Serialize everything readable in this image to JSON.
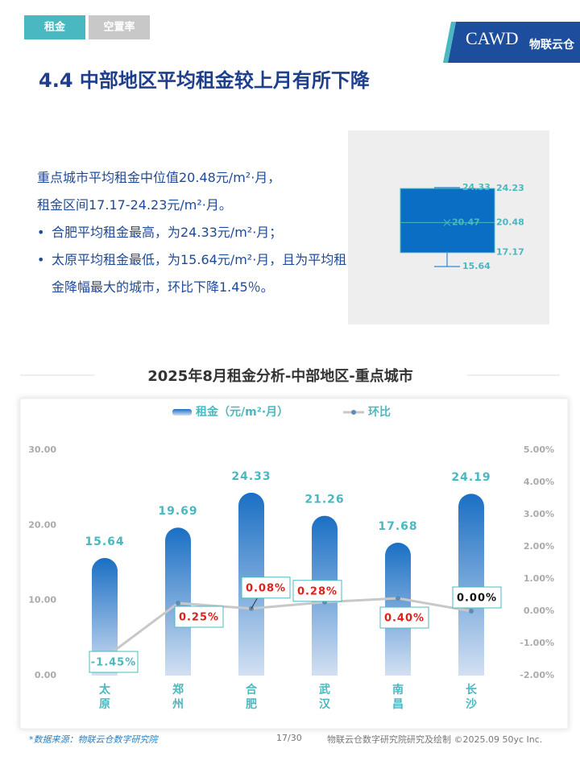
{
  "tabs": [
    "租金",
    "空置率"
  ],
  "logo": {
    "brand": "CAWD",
    "name": "物联云仓"
  },
  "heading": "4.4 中部地区平均租金较上月有所下降",
  "summary": {
    "lines": [
      "重点城市平均租金中位值20.48元/m²·月，",
      "租金区间17.17-24.23元/m²·月。"
    ],
    "bullets": [
      "合肥平均租金最高，为24.33元/m²·月；",
      "太原平均租金最低，为15.64元/m²·月，且为平均租金降幅最大的城市，环比下降1.45％。"
    ]
  },
  "box_plot": {
    "type": "box",
    "max": 24.33,
    "q3": 24.23,
    "median": 20.48,
    "mean": 20.47,
    "q1": 17.17,
    "min": 15.64,
    "color": "#0a6fc4"
  },
  "chart_data": {
    "type": "bar",
    "title": "2025年8月租金分析-中部地区-重点城市",
    "categories": [
      "太原",
      "郑州",
      "合肥",
      "武汉",
      "南昌",
      "长沙"
    ],
    "series": [
      {
        "name": "租金（元/m²·月）",
        "type": "bar",
        "color": "#1a6fc4",
        "values": [
          15.64,
          19.69,
          24.33,
          21.26,
          17.68,
          24.19
        ]
      },
      {
        "name": "环比",
        "type": "line",
        "axis": "y2",
        "color": "#c8c8c8",
        "values": [
          -1.45,
          0.25,
          0.08,
          0.28,
          0.4,
          0.0
        ],
        "value_labels": [
          "-1.45%",
          "0.25%",
          "0.08%",
          "0.28%",
          "0.40%",
          "0.00%"
        ]
      }
    ],
    "ylim": [
      0,
      30
    ],
    "yticks": [
      {
        "value": 0,
        "label": "0.00"
      },
      {
        "value": 10,
        "label": "10.00"
      },
      {
        "value": 20,
        "label": "20.00"
      },
      {
        "value": 30,
        "label": "30.00"
      }
    ],
    "y2lim": [
      -2,
      5
    ],
    "y2ticks": [
      {
        "value": -2,
        "label": "-2.00%"
      },
      {
        "value": -1,
        "label": "-1.00%"
      },
      {
        "value": 0,
        "label": "0.00%"
      },
      {
        "value": 1,
        "label": "1.00%"
      },
      {
        "value": 2,
        "label": "2.00%"
      },
      {
        "value": 3,
        "label": "3.00%"
      },
      {
        "value": 4,
        "label": "4.00%"
      },
      {
        "value": 5,
        "label": "5.00%"
      }
    ]
  },
  "footer": {
    "source": "*数据来源：物联云仓数字研究院",
    "page": "17/30",
    "credit": "物联云仓数字研究院研究及绘制 ©2025.09 50yc Inc."
  }
}
